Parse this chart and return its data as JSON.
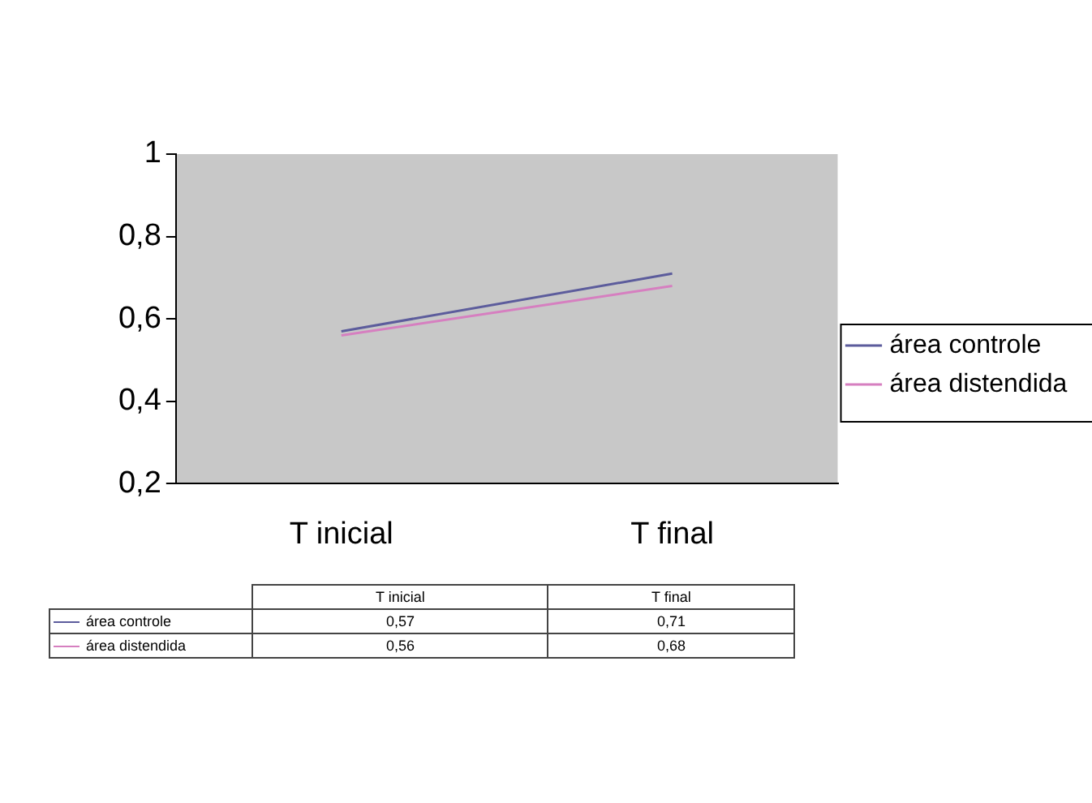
{
  "chart_data": {
    "type": "line",
    "categories": [
      "T inicial",
      "T final"
    ],
    "series": [
      {
        "name": "área controle",
        "color": "#5c5c9c",
        "values": [
          0.57,
          0.71
        ],
        "value_labels": [
          "0,57",
          "0,71"
        ]
      },
      {
        "name": "área distendida",
        "color": "#d67fc0",
        "values": [
          0.56,
          0.68
        ],
        "value_labels": [
          "0,56",
          "0,68"
        ]
      }
    ],
    "ylim": [
      0.2,
      1
    ],
    "yticks": [
      {
        "value": 0.2,
        "label": "0,2"
      },
      {
        "value": 0.4,
        "label": "0,4"
      },
      {
        "value": 0.6,
        "label": "0,6"
      },
      {
        "value": 0.8,
        "label": "0,8"
      },
      1
    ],
    "grid": false,
    "legend": "right",
    "marker": "none",
    "line_style": "solid"
  }
}
